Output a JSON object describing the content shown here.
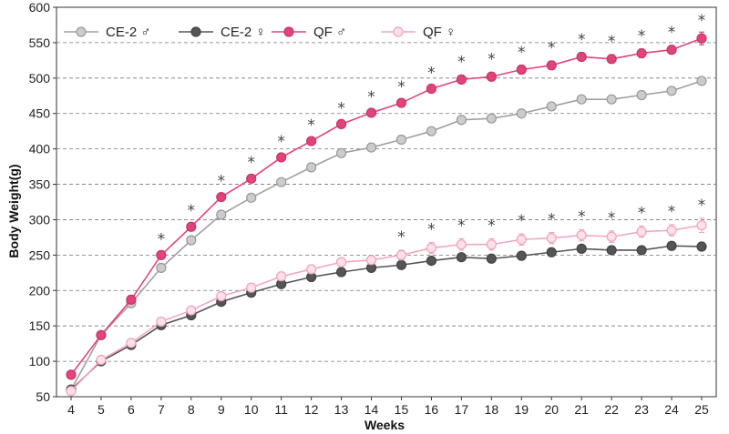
{
  "chart_data": {
    "type": "line",
    "title": "",
    "xlabel": "Weeks",
    "ylabel": "Body Weight(g)",
    "x": [
      4,
      5,
      6,
      7,
      8,
      9,
      10,
      11,
      12,
      13,
      14,
      15,
      16,
      17,
      18,
      19,
      20,
      21,
      22,
      23,
      24,
      25
    ],
    "xlim": [
      4,
      25
    ],
    "ylim": [
      50,
      600
    ],
    "yticks": [
      50,
      100,
      150,
      200,
      250,
      300,
      350,
      400,
      450,
      500,
      550,
      600
    ],
    "grid": "horizontal-dashed",
    "legend": "top-left",
    "series": [
      {
        "name": "CE-2 ♂",
        "line_color": "#a0a0a0",
        "marker_fill": "#cccccc",
        "marker_stroke": "#999999",
        "values": [
          60,
          137,
          182,
          232,
          271,
          307,
          331,
          353,
          374,
          394,
          402,
          413,
          425,
          441,
          443,
          450,
          460,
          470,
          470,
          476,
          482,
          496
        ],
        "errors": [
          2,
          3,
          3,
          4,
          4,
          4,
          4,
          4,
          4,
          4,
          4,
          4,
          4,
          5,
          5,
          5,
          5,
          5,
          5,
          5,
          5,
          5
        ]
      },
      {
        "name": "CE-2 ♀",
        "line_color": "#555555",
        "marker_fill": "#555555",
        "marker_stroke": "#444444",
        "values": [
          60,
          100,
          123,
          151,
          165,
          184,
          197,
          209,
          219,
          226,
          232,
          236,
          242,
          247,
          245,
          249,
          254,
          259,
          257,
          257,
          263,
          262
        ],
        "errors": [
          2,
          2,
          3,
          3,
          3,
          3,
          4,
          4,
          4,
          4,
          4,
          4,
          4,
          5,
          5,
          5,
          5,
          5,
          5,
          5,
          5,
          5
        ]
      },
      {
        "name": "QF ♂",
        "line_color": "#e0457a",
        "marker_fill": "#e0457a",
        "marker_stroke": "#c93366",
        "values": [
          81,
          137,
          187,
          250,
          290,
          332,
          358,
          388,
          411,
          435,
          451,
          465,
          485,
          498,
          502,
          512,
          518,
          530,
          527,
          535,
          540,
          556
        ],
        "errors": [
          2,
          3,
          3,
          4,
          4,
          4,
          4,
          4,
          4,
          4,
          4,
          4,
          4,
          6,
          6,
          6,
          6,
          6,
          6,
          6,
          6,
          9
        ]
      },
      {
        "name": "QF ♀",
        "line_color": "#f2a8bd",
        "marker_fill": "#fde0e8",
        "marker_stroke": "#eea3b8",
        "values": [
          58,
          102,
          126,
          156,
          172,
          192,
          204,
          220,
          230,
          240,
          243,
          250,
          260,
          265,
          265,
          272,
          274,
          278,
          276,
          283,
          285,
          292
        ],
        "errors": [
          2,
          3,
          4,
          5,
          5,
          5,
          6,
          6,
          6,
          6,
          6,
          7,
          8,
          8,
          8,
          8,
          8,
          8,
          8,
          8,
          8,
          10
        ]
      }
    ],
    "annotations": {
      "symbol": "*",
      "male_significance_weeks": [
        7,
        8,
        9,
        10,
        11,
        12,
        13,
        14,
        15,
        16,
        17,
        18,
        19,
        20,
        21,
        22,
        23,
        24,
        25
      ],
      "female_significance_weeks": [
        15,
        16,
        17,
        18,
        19,
        20,
        21,
        22,
        23,
        24,
        25
      ]
    }
  }
}
